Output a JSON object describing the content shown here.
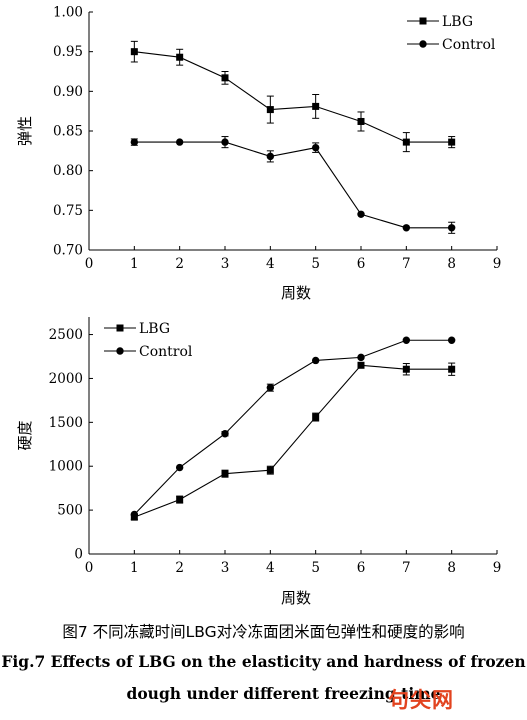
{
  "chart_data": [
    {
      "type": "line",
      "ylabel": "弹性",
      "xlabel": "周数",
      "xlim": [
        0,
        9
      ],
      "ylim": [
        0.7,
        1.0
      ],
      "x_ticks": [
        "0",
        "1",
        "2",
        "3",
        "4",
        "5",
        "6",
        "7",
        "8",
        "9"
      ],
      "y_ticks": [
        "0.70",
        "0.75",
        "0.80",
        "0.85",
        "0.90",
        "0.95",
        "1.00"
      ],
      "legend_position": "top-right",
      "x": [
        1,
        2,
        3,
        4,
        5,
        6,
        7,
        8
      ],
      "series": [
        {
          "name": "LBG",
          "marker": "square",
          "values": [
            0.95,
            0.943,
            0.917,
            0.877,
            0.881,
            0.862,
            0.836,
            0.836
          ],
          "errors": [
            0.013,
            0.01,
            0.008,
            0.017,
            0.015,
            0.012,
            0.012,
            0.007
          ]
        },
        {
          "name": "Control",
          "marker": "circle",
          "values": [
            0.836,
            0.836,
            0.836,
            0.818,
            0.829,
            0.745,
            0.728,
            0.728
          ],
          "errors": [
            0.004,
            0.0,
            0.007,
            0.007,
            0.006,
            0.0,
            0.0,
            0.007
          ]
        }
      ]
    },
    {
      "type": "line",
      "ylabel": "硬度",
      "xlabel": "周数",
      "xlim": [
        0,
        9
      ],
      "ylim": [
        0,
        2700
      ],
      "x_ticks": [
        "0",
        "1",
        "2",
        "3",
        "4",
        "5",
        "6",
        "7",
        "8",
        "9"
      ],
      "y_ticks": [
        "0",
        "500",
        "1000",
        "1500",
        "2000",
        "2500"
      ],
      "legend_position": "top-left",
      "x": [
        1,
        2,
        3,
        4,
        5,
        6,
        7,
        8
      ],
      "series": [
        {
          "name": "LBG",
          "marker": "square",
          "values": [
            420,
            620,
            915,
            955,
            1560,
            2150,
            2105,
            2105
          ],
          "errors": [
            25,
            40,
            40,
            45,
            45,
            20,
            65,
            70
          ]
        },
        {
          "name": "Control",
          "marker": "circle",
          "values": [
            450,
            985,
            1370,
            1895,
            2205,
            2240,
            2435,
            2435
          ],
          "errors": [
            0,
            0,
            25,
            40,
            0,
            0,
            0,
            0
          ]
        }
      ]
    }
  ],
  "caption": {
    "chinese": "图7 不同冻藏时间LBG对冷冻面团米面包弹性和硬度的影响",
    "english_line1": "Fig.7 Effects of LBG on the elasticity and hardness of frozen",
    "english_line2": "dough under different freezing time"
  },
  "watermark": "句尖网"
}
